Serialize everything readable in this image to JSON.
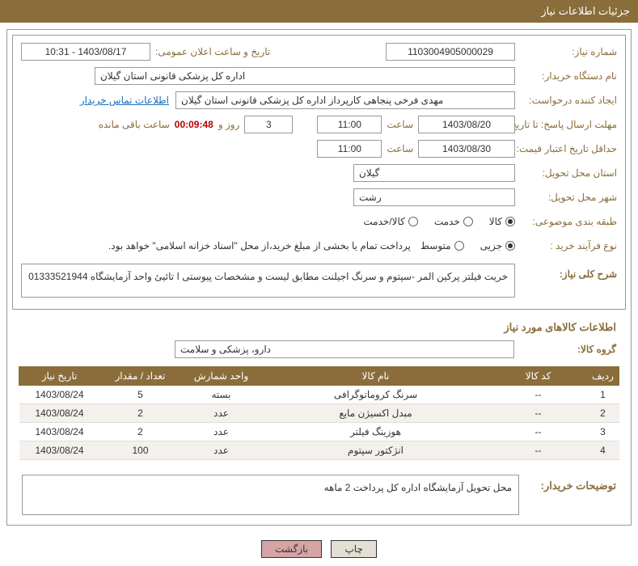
{
  "header": {
    "title": "جزئیات اطلاعات نیاز"
  },
  "fields": {
    "need_number_label": "شماره نیاز:",
    "need_number": "1103004905000029",
    "announce_label": "تاریخ و ساعت اعلان عمومی:",
    "announce_value": "1403/08/17 - 10:31",
    "buyer_label": "نام دستگاه خریدار:",
    "buyer_value": "اداره کل پزشکی قانونی استان گیلان",
    "requester_label": "ایجاد کننده درخواست:",
    "requester_value": "مهدی فرخی پنجاهی کارپرداز  اداره کل پزشکی قانونی استان گیلان",
    "contact_link": "اطلاعات تماس خریدار",
    "deadline_label": "مهلت ارسال پاسخ: تا تاریخ:",
    "deadline_date": "1403/08/20",
    "time_label": "ساعت",
    "deadline_time": "11:00",
    "days_value": "3",
    "days_and": "روز و",
    "timer_value": "00:09:48",
    "remaining_label": "ساعت باقی مانده",
    "validity_label": "حداقل تاریخ اعتبار قیمت: تا تاریخ:",
    "validity_date": "1403/08/30",
    "validity_time": "11:00",
    "province_label": "استان محل تحویل:",
    "province_value": "گیلان",
    "city_label": "شهر محل تحویل:",
    "city_value": "رشت",
    "category_label": "طبقه بندی موضوعی:",
    "cat_goods": "کالا",
    "cat_service": "خدمت",
    "cat_both": "کالا/خدمت",
    "process_label": "نوع فرآیند خرید :",
    "proc_small": "جزیی",
    "proc_medium": "متوسط",
    "process_note": "پرداخت تمام یا بخشی از مبلغ خرید،از محل \"اسناد خزانه اسلامی\" خواهد بود.",
    "overall_label": "شرح کلی نیاز:",
    "overall_value": "خریت فیلتر  پرکین المر -سپتوم و سرنگ اجیلنت مطابق لیست و مشخصات پیوستی  ا تائیئ واحد آزمایشگاه 01333521944",
    "goods_section": "اطلاعات کالاهای مورد نیاز",
    "group_label": "گروه کالا:",
    "group_value": "دارو، پزشکی و سلامت",
    "buyer_notes_label": "توضیحات خریدار:",
    "buyer_notes_value": "محل تحویل آزمایشگاه اداره کل پرداخت 2 ماهه"
  },
  "table": {
    "headers": {
      "row": "ردیف",
      "code": "کد کالا",
      "name": "نام کالا",
      "unit": "واحد شمارش",
      "qty": "تعداد / مقدار",
      "date": "تاریخ نیاز"
    },
    "rows": [
      {
        "row": "1",
        "code": "--",
        "name": "سرنگ کروماتوگرافی",
        "unit": "بسته",
        "qty": "5",
        "date": "1403/08/24"
      },
      {
        "row": "2",
        "code": "--",
        "name": "مبدل اکسیژن مایع",
        "unit": "عدد",
        "qty": "2",
        "date": "1403/08/24"
      },
      {
        "row": "3",
        "code": "--",
        "name": "هوزینگ فیلتر",
        "unit": "عدد",
        "qty": "2",
        "date": "1403/08/24"
      },
      {
        "row": "4",
        "code": "--",
        "name": "انژکتور سپتوم",
        "unit": "عدد",
        "qty": "100",
        "date": "1403/08/24"
      }
    ],
    "col_widths": {
      "row": "40px",
      "code": "120px",
      "name": "auto",
      "unit": "100px",
      "qty": "100px",
      "date": "100px"
    }
  },
  "buttons": {
    "print": "چاپ",
    "back": "بازگشت"
  },
  "colors": {
    "header_bg": "#8a6d3b",
    "label_color": "#8a6d3b",
    "link_color": "#1a6ebd",
    "timer_color": "#b00",
    "row_alt_bg": "#f4f1ec",
    "btn_back_bg": "#d6a4a4"
  }
}
